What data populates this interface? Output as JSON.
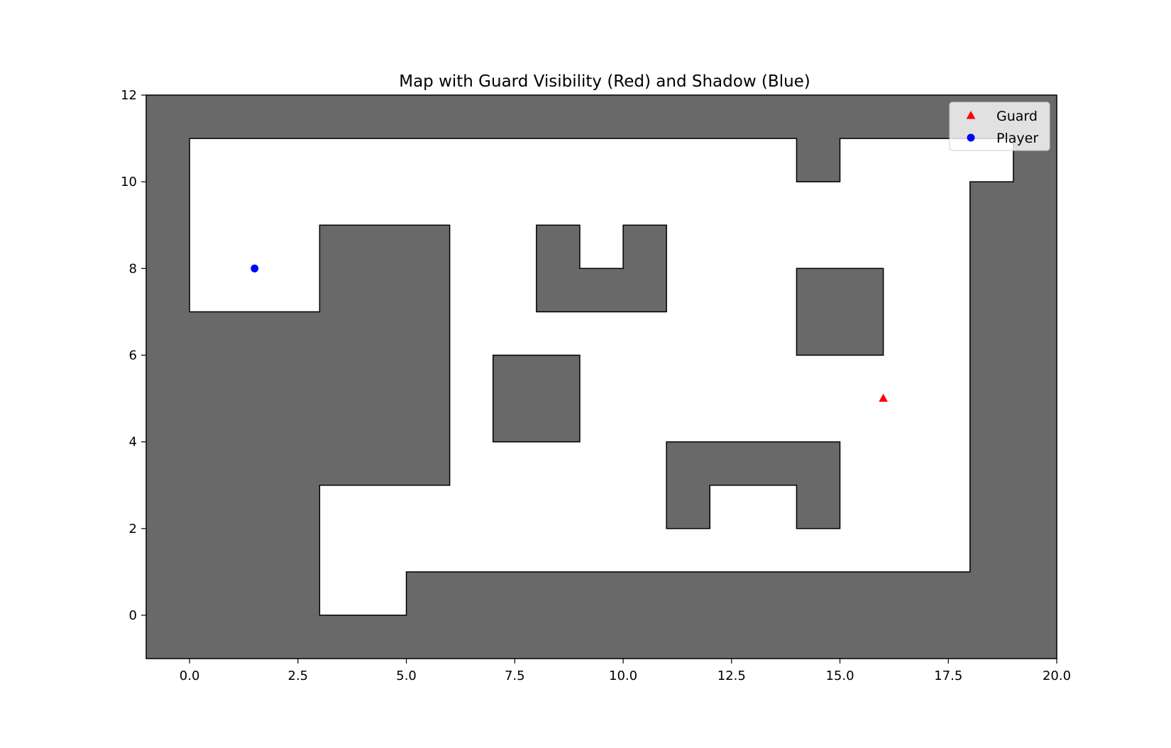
{
  "chart_data": {
    "type": "scatter",
    "title": "Map with Guard Visibility (Red) and Shadow (Blue)",
    "xlabel": "",
    "ylabel": "",
    "xlim": [
      -1,
      20
    ],
    "ylim": [
      -1,
      12
    ],
    "xticks": [
      0.0,
      2.5,
      5.0,
      7.5,
      10.0,
      12.5,
      15.0,
      17.5,
      20.0
    ],
    "xtick_labels": [
      "0.0",
      "2.5",
      "5.0",
      "7.5",
      "10.0",
      "12.5",
      "15.0",
      "17.5",
      "20.0"
    ],
    "yticks": [
      0,
      2,
      4,
      6,
      8,
      10,
      12
    ],
    "ytick_labels": [
      "0",
      "2",
      "4",
      "6",
      "8",
      "10",
      "12"
    ],
    "grid": false,
    "legend": {
      "position": "upper-right"
    },
    "wall_color": "#696969",
    "floor_color": "#ffffff",
    "free_space": [
      [
        0,
        11
      ],
      [
        14,
        11
      ],
      [
        14,
        10
      ],
      [
        15,
        10
      ],
      [
        15,
        11
      ],
      [
        19,
        11
      ],
      [
        19,
        10
      ],
      [
        18,
        10
      ],
      [
        18,
        1
      ],
      [
        5,
        1
      ],
      [
        5,
        0
      ],
      [
        3,
        0
      ],
      [
        3,
        3
      ],
      [
        6,
        3
      ],
      [
        6,
        9
      ],
      [
        3,
        9
      ],
      [
        3,
        7
      ],
      [
        0,
        7
      ]
    ],
    "obstacles": [
      {
        "points": [
          [
            7,
            4
          ],
          [
            9,
            4
          ],
          [
            9,
            6
          ],
          [
            7,
            6
          ]
        ]
      },
      {
        "points": [
          [
            8,
            7
          ],
          [
            11,
            7
          ],
          [
            11,
            9
          ],
          [
            10,
            9
          ],
          [
            10,
            8
          ],
          [
            9,
            8
          ],
          [
            9,
            9
          ],
          [
            8,
            9
          ]
        ]
      },
      {
        "points": [
          [
            14,
            6
          ],
          [
            16,
            6
          ],
          [
            16,
            8
          ],
          [
            14,
            8
          ]
        ]
      },
      {
        "points": [
          [
            11,
            2
          ],
          [
            12,
            2
          ],
          [
            12,
            3
          ],
          [
            14,
            3
          ],
          [
            14,
            2
          ],
          [
            15,
            2
          ],
          [
            15,
            4
          ],
          [
            11,
            4
          ]
        ]
      }
    ],
    "series": [
      {
        "name": "Guard",
        "marker": "triangle",
        "color": "#ff0000",
        "points": [
          [
            16,
            5
          ]
        ]
      },
      {
        "name": "Player",
        "marker": "circle",
        "color": "#0000ff",
        "points": [
          [
            1.5,
            8
          ]
        ]
      }
    ]
  }
}
